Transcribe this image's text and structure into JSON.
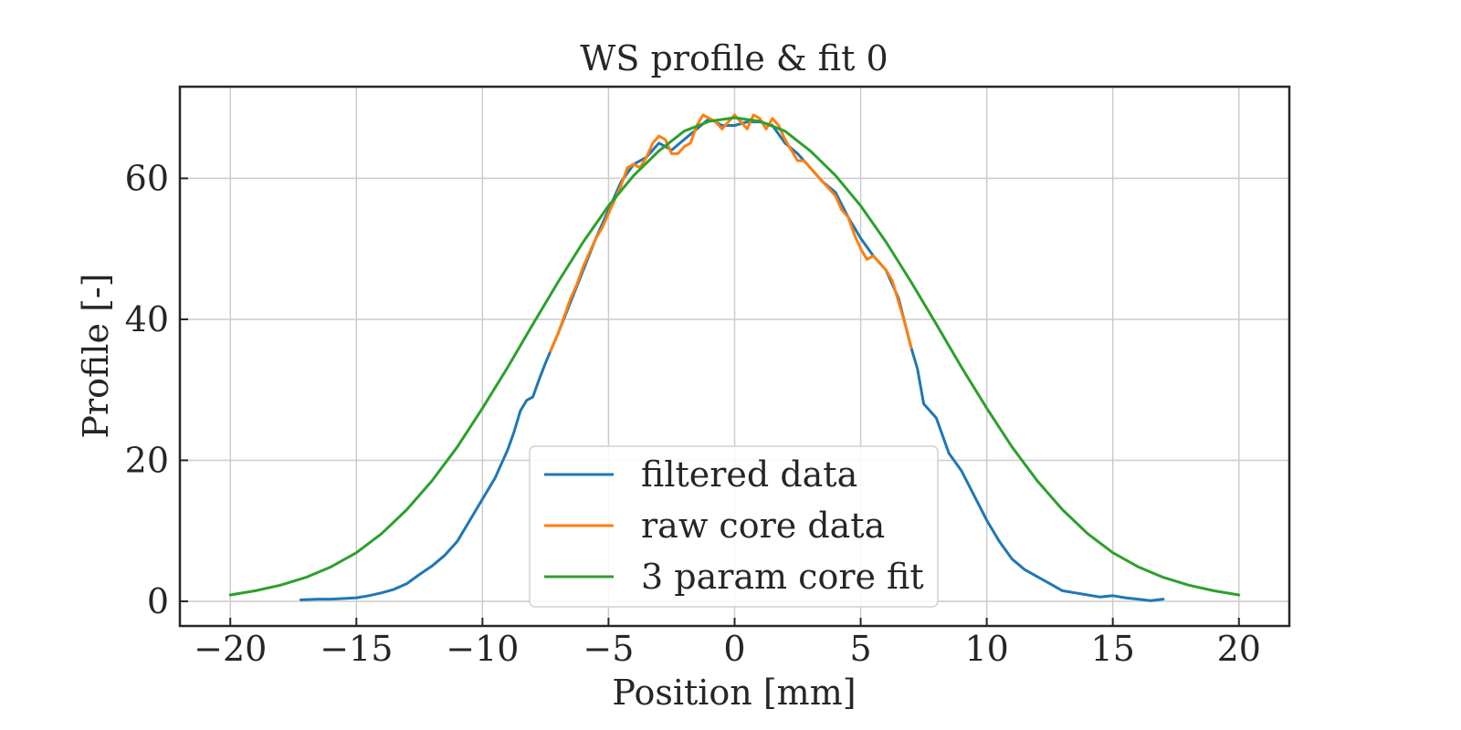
{
  "chart_data": {
    "type": "line",
    "title": "WS profile & fit 0",
    "xlabel": "Position [mm]",
    "ylabel": "Profile [-]",
    "xlim": [
      -22,
      22
    ],
    "ylim": [
      -3.5,
      73
    ],
    "xticks": [
      -20,
      -15,
      -10,
      -5,
      0,
      5,
      10,
      15,
      20
    ],
    "xtick_labels": [
      "−20",
      "−15",
      "−10",
      "−5",
      "0",
      "5",
      "10",
      "15",
      "20"
    ],
    "yticks": [
      0,
      20,
      40,
      60
    ],
    "ytick_labels": [
      "0",
      "20",
      "40",
      "60"
    ],
    "grid": true,
    "legend_position": "bottom-center",
    "series": [
      {
        "name": "filtered data",
        "color": "#1f77b4",
        "x": [
          -17.2,
          -16.5,
          -16,
          -15.5,
          -15,
          -14.5,
          -14,
          -13.5,
          -13,
          -12.5,
          -12,
          -11.5,
          -11,
          -10.5,
          -10,
          -9.5,
          -9.25,
          -9,
          -8.75,
          -8.5,
          -8.25,
          -8,
          -7.75,
          -7.5,
          -7.3,
          -7,
          -6.5,
          -6,
          -5.5,
          -5,
          -4.5,
          -4,
          -3.5,
          -3,
          -2.5,
          -2,
          -1.5,
          -1,
          -0.5,
          0,
          0.5,
          1,
          1.5,
          2,
          2.5,
          3,
          3.5,
          4,
          4.5,
          5,
          5.5,
          6,
          6.5,
          7,
          7.25,
          7.5,
          8,
          8.5,
          9,
          9.5,
          10,
          10.5,
          11,
          11.5,
          12,
          12.5,
          13,
          13.5,
          14,
          14.5,
          15,
          15.5,
          16,
          16.5,
          17
        ],
        "y": [
          0.2,
          0.3,
          0.3,
          0.4,
          0.5,
          0.8,
          1.2,
          1.7,
          2.5,
          3.8,
          5,
          6.5,
          8.5,
          11.5,
          14.5,
          17.5,
          19.5,
          21.5,
          24,
          27,
          28.5,
          29,
          31.5,
          33.8,
          35.5,
          38,
          42.5,
          47,
          51.5,
          55.5,
          59.5,
          62,
          63,
          65,
          64,
          65.5,
          67,
          68.5,
          67.5,
          67.5,
          68,
          68,
          67.5,
          65,
          63.5,
          61.5,
          59.5,
          58,
          54.5,
          51.5,
          49,
          47,
          43,
          36,
          33,
          28,
          26,
          21,
          18.5,
          15,
          11.5,
          8.5,
          6,
          4.5,
          3.5,
          2.5,
          1.5,
          1.2,
          0.9,
          0.6,
          0.8,
          0.5,
          0.3,
          0.1,
          0.3
        ]
      },
      {
        "name": "raw core data",
        "color": "#ff7f0e",
        "x": [
          -7.3,
          -7,
          -6.75,
          -6.5,
          -6.25,
          -6,
          -5.75,
          -5.5,
          -5.25,
          -5,
          -4.75,
          -4.5,
          -4.25,
          -4,
          -3.75,
          -3.5,
          -3.25,
          -3,
          -2.75,
          -2.5,
          -2.25,
          -2,
          -1.75,
          -1.5,
          -1.25,
          -1,
          -0.75,
          -0.5,
          -0.25,
          0,
          0.25,
          0.5,
          0.75,
          1,
          1.25,
          1.5,
          1.75,
          2,
          2.25,
          2.5,
          2.75,
          3,
          3.25,
          3.5,
          3.75,
          4,
          4.25,
          4.5,
          4.75,
          5,
          5.25,
          5.5,
          5.75,
          6,
          6.25,
          6.5,
          6.75,
          7
        ],
        "y": [
          35.5,
          38,
          40.5,
          43,
          45,
          47.5,
          49.5,
          51.5,
          53,
          55,
          57,
          59,
          61.5,
          62,
          61.5,
          63,
          65,
          66,
          65.5,
          63.5,
          63.5,
          64.5,
          65,
          67.5,
          69,
          68.5,
          68,
          67,
          68,
          69,
          68,
          67,
          69,
          68.5,
          67,
          68.5,
          67.5,
          65.5,
          64,
          62.5,
          62.5,
          61.5,
          60.5,
          59.5,
          58.5,
          57.5,
          55.5,
          54.5,
          52,
          50,
          48.5,
          49,
          48,
          47,
          45.5,
          42.5,
          39.5,
          36
        ]
      },
      {
        "name": "3 param core fit",
        "color": "#2ca02c",
        "x": [
          -20,
          -19,
          -18,
          -17,
          -16,
          -15,
          -14,
          -13,
          -12,
          -11,
          -10,
          -9,
          -8,
          -7,
          -6,
          -5,
          -4,
          -3,
          -2,
          -1,
          0,
          1,
          2,
          3,
          4,
          5,
          6,
          7,
          8,
          9,
          10,
          11,
          12,
          13,
          14,
          15,
          16,
          17,
          18,
          19,
          20
        ],
        "y": [
          0.9,
          1.5,
          2.3,
          3.4,
          4.9,
          6.9,
          9.6,
          13,
          17.1,
          21.9,
          27.4,
          33.2,
          39.3,
          45.3,
          51,
          56.1,
          60.4,
          63.9,
          66.7,
          68.1,
          68.6,
          68.1,
          66.7,
          63.9,
          60.4,
          56.1,
          51,
          45.3,
          39.3,
          33.2,
          27.4,
          21.9,
          17.1,
          13,
          9.6,
          6.9,
          4.9,
          3.4,
          2.3,
          1.5,
          0.9
        ]
      }
    ]
  }
}
